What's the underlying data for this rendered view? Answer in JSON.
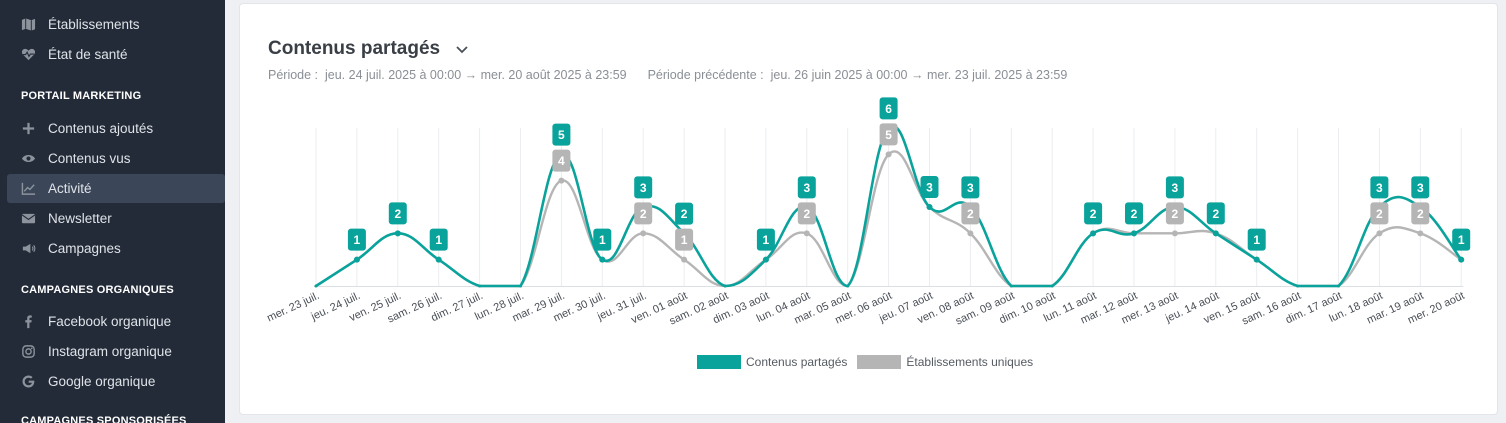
{
  "sidebar": {
    "top_items": [
      {
        "label": "Établissements",
        "icon": "map-icon"
      },
      {
        "label": "État de santé",
        "icon": "heart-pulse-icon"
      }
    ],
    "sections": [
      {
        "title": "PORTAIL MARKETING"
      },
      {
        "title": "CAMPAGNES ORGANIQUES"
      },
      {
        "title": "CAMPAGNES SPONSORISÉES"
      }
    ],
    "marketing_items": [
      {
        "label": "Contenus ajoutés",
        "icon": "plus-icon"
      },
      {
        "label": "Contenus vus",
        "icon": "eye-icon"
      },
      {
        "label": "Activité",
        "icon": "line-chart-icon",
        "active": true
      },
      {
        "label": "Newsletter",
        "icon": "envelope-icon"
      },
      {
        "label": "Campagnes",
        "icon": "megaphone-icon"
      }
    ],
    "organic_items": [
      {
        "label": "Facebook organique",
        "icon": "facebook-icon"
      },
      {
        "label": "Instagram organique",
        "icon": "instagram-icon"
      },
      {
        "label": "Google organique",
        "icon": "google-icon"
      }
    ]
  },
  "card": {
    "title": "Contenus partagés",
    "period_label": "Période :",
    "period_value": "jeu. 24 juil. 2025 à 00:00 → mer. 20 août 2025 à 23:59",
    "previous_label": "Période précédente :",
    "previous_value": "jeu. 26 juin 2025 à 00:00 → mer. 23 juil. 2025 à 23:59"
  },
  "chart_data": {
    "type": "line",
    "title": "Contenus partagés",
    "xlabel": "",
    "ylabel": "",
    "ylim": [
      0,
      6
    ],
    "grid": true,
    "legend": "bottom-center",
    "categories": [
      "mer. 23 juil.",
      "jeu. 24 juil.",
      "ven. 25 juil.",
      "sam. 26 juil.",
      "dim. 27 juil.",
      "lun. 28 juil.",
      "mar. 29 juil.",
      "mer. 30 juil.",
      "jeu. 31 juil.",
      "ven. 01 août",
      "sam. 02 août",
      "dim. 03 août",
      "lun. 04 août",
      "mar. 05 août",
      "mer. 06 août",
      "jeu. 07 août",
      "ven. 08 août",
      "sam. 09 août",
      "dim. 10 août",
      "lun. 11 août",
      "mar. 12 août",
      "mer. 13 août",
      "jeu. 14 août",
      "ven. 15 août",
      "sam. 16 août",
      "dim. 17 août",
      "lun. 18 août",
      "mar. 19 août",
      "mer. 20 août"
    ],
    "series": [
      {
        "name": "Contenus partagés",
        "color": "#0aa39c",
        "values": [
          0,
          1,
          2,
          1,
          0,
          0,
          5,
          1,
          3,
          2,
          0,
          1,
          3,
          0,
          6,
          3,
          3,
          0,
          0,
          2,
          2,
          3,
          2,
          1,
          0,
          0,
          3,
          3,
          1
        ]
      },
      {
        "name": "Établissements uniques",
        "color": "#b5b5b5",
        "values": [
          0,
          1,
          2,
          1,
          0,
          0,
          4,
          1,
          2,
          1,
          0,
          1,
          2,
          0,
          5,
          3,
          2,
          0,
          0,
          2,
          2,
          2,
          2,
          1,
          0,
          0,
          2,
          2,
          1
        ]
      }
    ]
  }
}
